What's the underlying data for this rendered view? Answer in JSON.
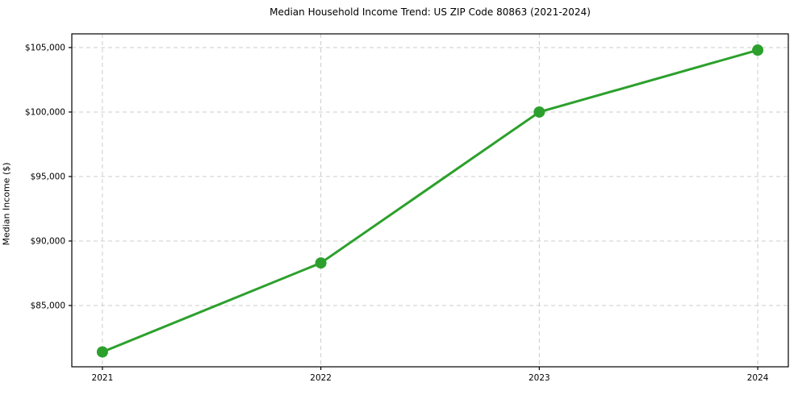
{
  "chart_data": {
    "type": "line",
    "title": "Median Household Income Trend: US ZIP Code 80863 (2021-2024)",
    "xlabel": "",
    "ylabel": "Median Income ($)",
    "x": [
      2021,
      2022,
      2023,
      2024
    ],
    "x_tick_labels": [
      "2021",
      "2022",
      "2023",
      "2024"
    ],
    "series": [
      {
        "name": "Median Household Income",
        "values": [
          81400,
          88300,
          100000,
          104800
        ]
      }
    ],
    "y_ticks": [
      85000,
      90000,
      95000,
      100000,
      105000
    ],
    "y_tick_labels": [
      "$85,000",
      "$90,000",
      "$95,000",
      "$100,000",
      "$105,000"
    ],
    "ylim": [
      80250,
      106060
    ],
    "xlim": [
      2020.86,
      2024.14
    ],
    "grid": true,
    "grid_style": "dashed",
    "legend": false,
    "colors": {
      "line": "#2ca02c",
      "marker": "#2ca02c",
      "grid": "#cccccc",
      "border": "#000000",
      "background": "#ffffff",
      "text": "#000000"
    },
    "line_width": 3,
    "marker_radius": 7
  }
}
